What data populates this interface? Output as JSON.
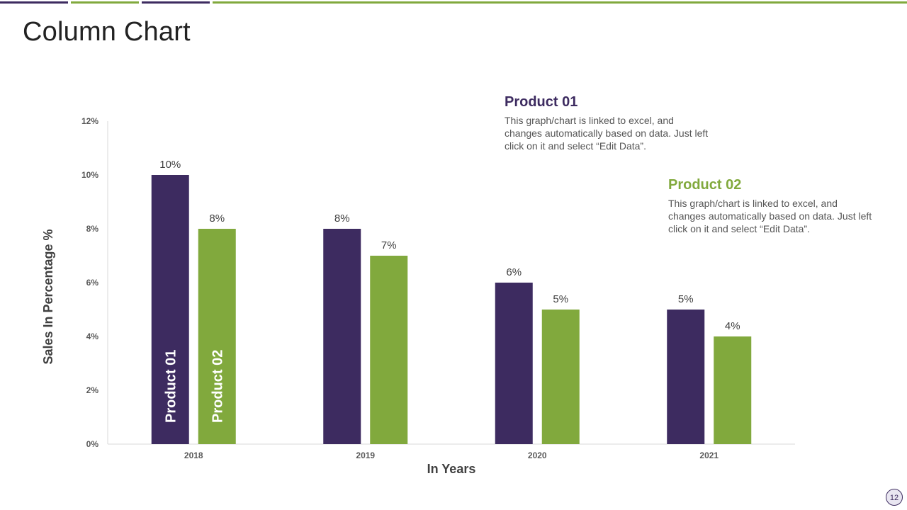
{
  "colors": {
    "product01": "#3d2b60",
    "product02": "#81a93d",
    "axis": "#d9d9d9"
  },
  "slide": {
    "title": "Column Chart",
    "page_number": "12"
  },
  "legend": [
    {
      "title": "Product 01",
      "text": "This graph/chart is linked to excel, and changes automatically based on data. Just left click on it and select “Edit Data”."
    },
    {
      "title": "Product 02",
      "text": "This graph/chart is linked to excel, and changes automatically based on data. Just left click on it and select “Edit Data”."
    }
  ],
  "chart_data": {
    "type": "bar",
    "title": "",
    "categories": [
      "2018",
      "2019",
      "2020",
      "2021"
    ],
    "series": [
      {
        "name": "Product 01",
        "values": [
          10,
          8,
          6,
          5
        ],
        "labels": [
          "10%",
          "8%",
          "6%",
          "5%"
        ]
      },
      {
        "name": "Product 02",
        "values": [
          8,
          7,
          5,
          4
        ],
        "labels": [
          "8%",
          "7%",
          "5%",
          "4%"
        ]
      }
    ],
    "xlabel": "In Years",
    "ylabel": "Sales In Percentage %",
    "ylim": [
      0,
      12
    ],
    "yticks": [
      0,
      2,
      4,
      6,
      8,
      10,
      12
    ],
    "ytick_labels": [
      "0%",
      "2%",
      "4%",
      "6%",
      "8%",
      "10%",
      "12%"
    ],
    "grid": false,
    "legend": "top-right"
  }
}
